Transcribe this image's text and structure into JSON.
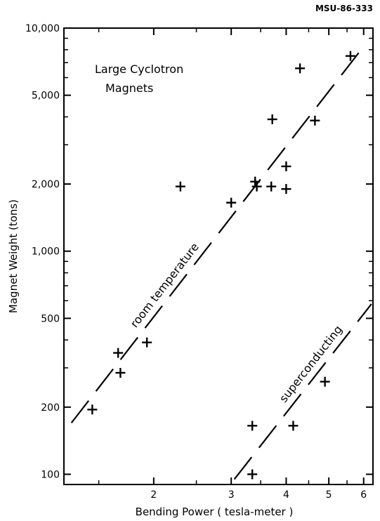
{
  "figure_code": "MSU-86-333",
  "chart_data": {
    "type": "scatter",
    "title": "",
    "annotation_lines": [
      "Large  Cyclotron",
      "Magnets"
    ],
    "xlabel": "Bending  Power  ( tesla-meter )",
    "ylabel": "Magnet  Weight  (tons)",
    "x_scale": "log",
    "y_scale": "log",
    "xlim": [
      1.25,
      6.3
    ],
    "ylim": [
      90,
      10000
    ],
    "x_ticks": [
      {
        "value": 2,
        "label": "2"
      },
      {
        "value": 3,
        "label": "3"
      },
      {
        "value": 4,
        "label": "4"
      },
      {
        "value": 5,
        "label": "5"
      },
      {
        "value": 6,
        "label": "6"
      }
    ],
    "x_minor_ticks": [
      1.5,
      2.5,
      3.5,
      4.5,
      5.5
    ],
    "y_ticks": [
      {
        "value": 100,
        "label": "100"
      },
      {
        "value": 200,
        "label": "200"
      },
      {
        "value": 500,
        "label": "500"
      },
      {
        "value": 1000,
        "label": "1,000"
      },
      {
        "value": 2000,
        "label": "2,000"
      },
      {
        "value": 5000,
        "label": "5,000"
      },
      {
        "value": 10000,
        "label": "10,000"
      }
    ],
    "y_minor_ticks": [
      300,
      400,
      600,
      700,
      800,
      900,
      3000,
      4000,
      6000,
      7000,
      8000,
      9000
    ],
    "grid": false,
    "marker": "plus",
    "points": [
      {
        "x": 1.45,
        "y": 195
      },
      {
        "x": 1.66,
        "y": 350
      },
      {
        "x": 1.68,
        "y": 285
      },
      {
        "x": 1.93,
        "y": 390
      },
      {
        "x": 2.3,
        "y": 1950
      },
      {
        "x": 3.0,
        "y": 1650
      },
      {
        "x": 3.4,
        "y": 2050
      },
      {
        "x": 3.43,
        "y": 1950
      },
      {
        "x": 3.7,
        "y": 1950
      },
      {
        "x": 3.72,
        "y": 3900
      },
      {
        "x": 4.0,
        "y": 2400
      },
      {
        "x": 4.0,
        "y": 1900
      },
      {
        "x": 4.3,
        "y": 6600
      },
      {
        "x": 4.65,
        "y": 3850
      },
      {
        "x": 5.6,
        "y": 7500
      },
      {
        "x": 3.35,
        "y": 165
      },
      {
        "x": 3.35,
        "y": 100
      },
      {
        "x": 4.15,
        "y": 165
      },
      {
        "x": 4.9,
        "y": 260
      }
    ],
    "fit_lines": [
      {
        "name": "room temperature",
        "start": {
          "x": 1.3,
          "y": 170
        },
        "end": {
          "x": 5.95,
          "y": 8100
        }
      },
      {
        "name": "superconducting",
        "start": {
          "x": 3.05,
          "y": 95
        },
        "end": {
          "x": 6.25,
          "y": 580
        }
      }
    ]
  }
}
